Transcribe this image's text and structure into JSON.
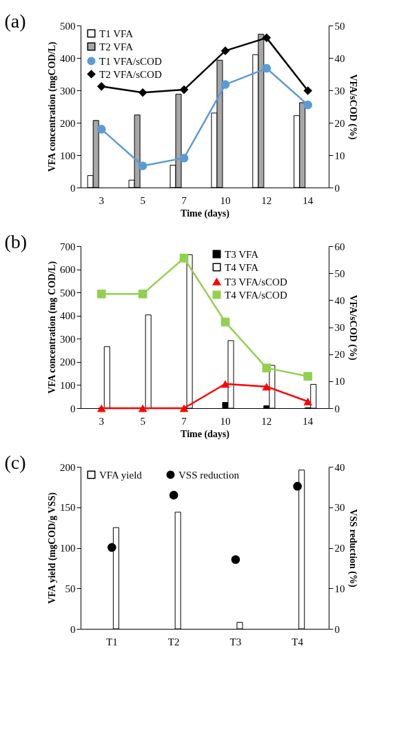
{
  "chart_data": [
    {
      "type": "bar",
      "title": "(a)",
      "xlabel": "Time (days)",
      "ylabel": "VFA concentration (mgCOD/L)",
      "y2label": "VFA/sCOD (%)",
      "categories": [
        "3",
        "5",
        "7",
        "10",
        "12",
        "14"
      ],
      "series": [
        {
          "name": "T1 VFA",
          "type": "bar",
          "color": "#ffffff",
          "values": [
            37,
            23,
            69,
            230,
            410,
            222
          ]
        },
        {
          "name": "T2 VFA",
          "type": "bar",
          "color": "#a6a6a6",
          "values": [
            207,
            224,
            288,
            393,
            473,
            262
          ]
        },
        {
          "name": "T1 VFA/sCOD",
          "type": "line",
          "axis": "y2",
          "marker": "circle",
          "color": "#5b9bd5",
          "values": [
            18,
            6.7,
            9.1,
            31.8,
            36.8,
            25.5
          ]
        },
        {
          "name": "T2 VFA/sCOD",
          "type": "line",
          "axis": "y2",
          "marker": "diamond",
          "color": "#000000",
          "values": [
            31.2,
            29.3,
            30.2,
            42.2,
            46.2,
            29.9
          ]
        }
      ],
      "ylim": [
        0,
        500
      ],
      "yticks": [
        0,
        100,
        200,
        300,
        400,
        500
      ],
      "y2lim": [
        0,
        50
      ],
      "y2ticks": [
        0,
        10,
        20,
        30,
        40,
        50
      ],
      "legend": "top left",
      "grid": false
    },
    {
      "type": "bar",
      "title": "(b)",
      "xlabel": "Time (days)",
      "ylabel": "VFA concentration (mg COD/L)",
      "y2label": "VFA/sCOD (%)",
      "categories": [
        "3",
        "5",
        "7",
        "10",
        "12",
        "14"
      ],
      "series": [
        {
          "name": "T3 VFA",
          "type": "bar",
          "color": "#000000",
          "values": [
            0,
            0,
            0,
            25,
            11,
            2
          ]
        },
        {
          "name": "T4 VFA",
          "type": "bar",
          "color": "#ffffff",
          "values": [
            266,
            403,
            663,
            292,
            185,
            103
          ]
        },
        {
          "name": "T3 VFA/sCOD",
          "type": "line",
          "axis": "y2",
          "marker": "triangle",
          "color": "#ff0000",
          "values": [
            0,
            0,
            0,
            9,
            8,
            2.5
          ]
        },
        {
          "name": "T4 VFA/sCOD",
          "type": "line",
          "axis": "y2",
          "marker": "square",
          "color": "#92d050",
          "values": [
            42.3,
            42.3,
            55.6,
            31.9,
            14.9,
            11.8
          ]
        }
      ],
      "ylim": [
        0,
        700
      ],
      "yticks": [
        0,
        100,
        200,
        300,
        400,
        500,
        600,
        700
      ],
      "y2lim": [
        0,
        60
      ],
      "y2ticks": [
        0,
        10,
        20,
        30,
        40,
        50,
        60
      ],
      "legend": "top right",
      "grid": false
    },
    {
      "type": "bar",
      "title": "(c)",
      "ylabel": "VFA yield (mgCOD/g VSS)",
      "y2label": "VSS reduction (%)",
      "categories": [
        "T1",
        "T2",
        "T3",
        "T4"
      ],
      "series": [
        {
          "name": "VFA yield",
          "type": "bar",
          "color": "#ffffff",
          "values": [
            125,
            144,
            8,
            196
          ]
        },
        {
          "name": "VSS reduction",
          "type": "scatter",
          "axis": "y2",
          "marker": "circle",
          "color": "#000000",
          "values": [
            20.1,
            33,
            17.1,
            35.2
          ]
        }
      ],
      "ylim": [
        0,
        200
      ],
      "yticks": [
        0,
        50,
        100,
        150,
        200
      ],
      "y2lim": [
        0,
        40
      ],
      "y2ticks": [
        0,
        10,
        20,
        30,
        40
      ],
      "legend": "top",
      "grid": false
    }
  ]
}
